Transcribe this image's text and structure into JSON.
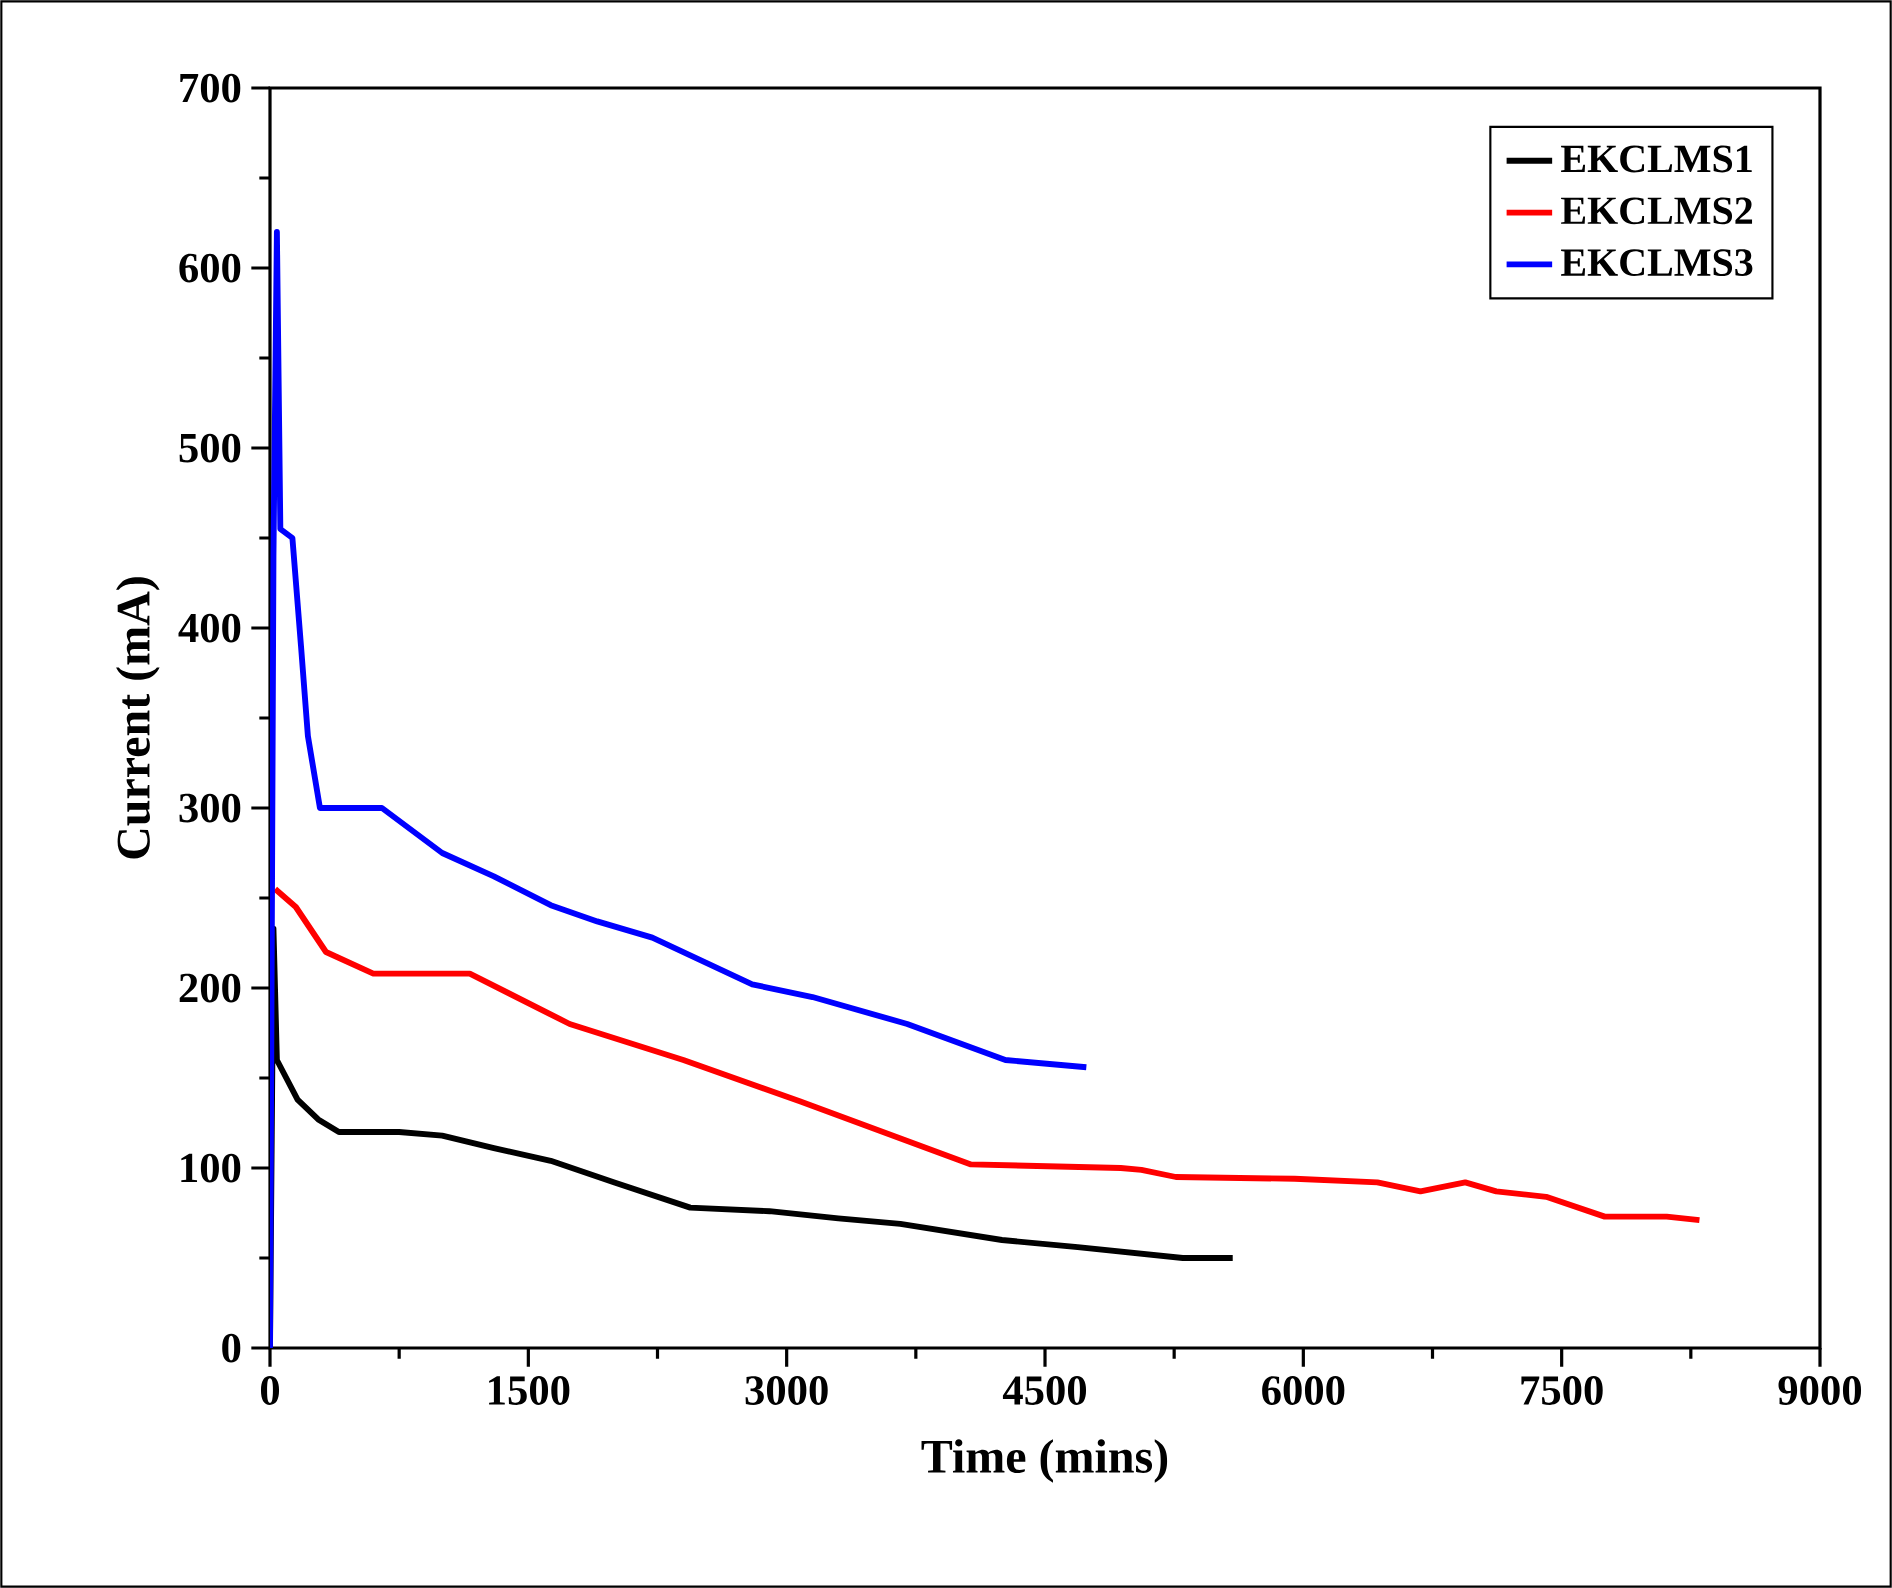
{
  "chart_data": {
    "type": "line",
    "xlabel": "Time (mins)",
    "ylabel": "Current (mA)",
    "xlim": [
      0,
      9000
    ],
    "ylim": [
      0,
      700
    ],
    "xticks": [
      0,
      1500,
      3000,
      4500,
      6000,
      7500,
      9000
    ],
    "yticks": [
      0,
      100,
      200,
      300,
      400,
      500,
      600,
      700
    ],
    "legend": "top right",
    "grid": false,
    "marker": "none",
    "line_style": "solid",
    "series": [
      {
        "name": "EKCLMS1",
        "color": "#000000",
        "x": [
          0,
          20,
          40,
          160,
          280,
          400,
          750,
          1000,
          1300,
          1630,
          2000,
          2440,
          2900,
          3300,
          3660,
          4250,
          4690,
          5300,
          5590
        ],
        "values": [
          0,
          233,
          160,
          138,
          127,
          120,
          120,
          118,
          111,
          104,
          92,
          78,
          76,
          72,
          69,
          60,
          56,
          50,
          50
        ]
      },
      {
        "name": "EKCLMS2",
        "color": "#ff0000",
        "x": [
          30,
          150,
          325,
          600,
          1160,
          1740,
          2400,
          3080,
          4070,
          4940,
          5060,
          5260,
          5950,
          6430,
          6680,
          6940,
          7120,
          7410,
          7750,
          8110,
          8300
        ],
        "values": [
          255,
          245,
          220,
          208,
          208,
          180,
          160,
          137,
          102,
          100,
          99,
          95,
          94,
          92,
          87,
          92,
          87,
          84,
          73,
          73,
          71
        ]
      },
      {
        "name": "EKCLMS3",
        "color": "#0000ff",
        "x": [
          0,
          20,
          40,
          60,
          130,
          180,
          220,
          290,
          650,
          1000,
          1300,
          1630,
          1900,
          2220,
          2800,
          3150,
          3700,
          4270,
          4740
        ],
        "values": [
          0,
          440,
          620,
          455,
          450,
          390,
          340,
          300,
          300,
          275,
          262,
          246,
          237,
          228,
          202,
          195,
          180,
          160,
          156
        ]
      }
    ]
  }
}
